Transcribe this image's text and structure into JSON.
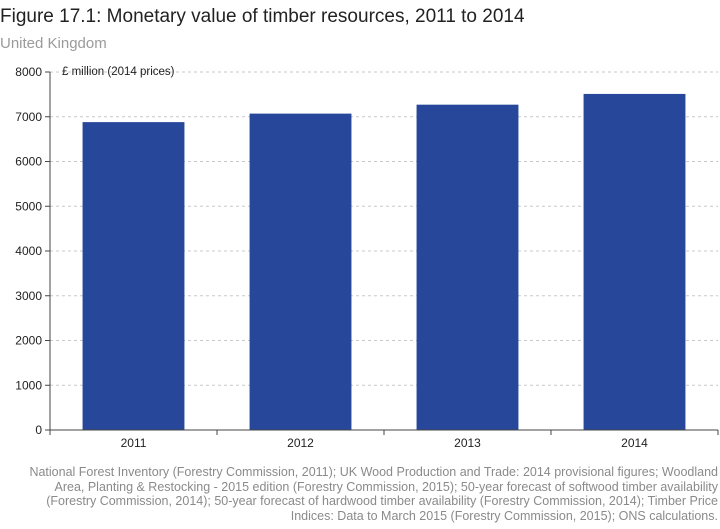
{
  "chart_data": {
    "type": "bar",
    "title": "Figure 17.1: Monetary value of timber resources, 2011 to 2014",
    "subtitle": "United Kingdom",
    "ylabel": "£ million (2014 prices)",
    "categories": [
      "2011",
      "2012",
      "2013",
      "2014"
    ],
    "values": [
      6880,
      7070,
      7270,
      7510
    ],
    "ylim": [
      0,
      8000
    ],
    "yticks": [
      0,
      1000,
      2000,
      3000,
      4000,
      5000,
      6000,
      7000,
      8000
    ],
    "grid": true,
    "bar_color": "#27479a",
    "source": "National Forest Inventory (Forestry Commission, 2011); UK Wood Production and Trade: 2014 provisional figures; Woodland Area, Planting & Restocking - 2015 edition (Forestry Commission, 2015); 50-year forecast of softwood timber availability (Forestry Commission, 2014); 50-year forecast of hardwood timber availability (Forestry Commission, 2014); Timber Price Indices: Data to March 2015 (Forestry Commission, 2015); ONS calculations."
  }
}
